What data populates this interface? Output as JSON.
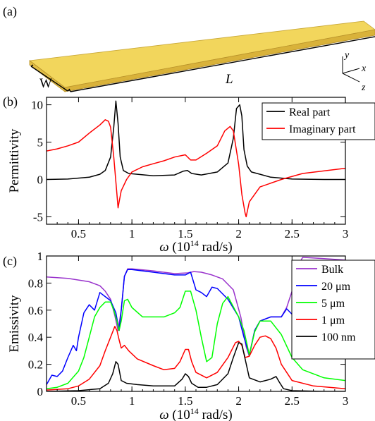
{
  "panel_a": {
    "label": "(a)",
    "width_label": "W",
    "length_label": "L",
    "axis_labels": {
      "y": "y",
      "x": "x",
      "z": "z"
    },
    "slab_color": "#f0d45a"
  },
  "chart_data": [
    {
      "type": "line",
      "panel": "(b)",
      "title": "",
      "xlabel": "ω (10",
      "xlabel_exp": "14",
      "xlabel_unit": " rad/s)",
      "ylabel": "Permittivity",
      "xlim": [
        0.2,
        3.0
      ],
      "ylim": [
        -6,
        11
      ],
      "xticks": [
        0.5,
        1,
        1.5,
        2,
        2.5,
        3
      ],
      "xtick_labels": [
        "0.5",
        "1",
        "1.5",
        "2",
        "2.5",
        "3"
      ],
      "yticks": [
        -5,
        0,
        5,
        10
      ],
      "ytick_labels": [
        "-5",
        "0",
        "5",
        "10"
      ],
      "grid": false,
      "legend_position": "top-right",
      "series": [
        {
          "name": "Real part",
          "color": "#000000",
          "x": [
            0.2,
            0.4,
            0.6,
            0.7,
            0.75,
            0.8,
            0.83,
            0.85,
            0.87,
            0.89,
            0.92,
            0.97,
            1.05,
            1.2,
            1.4,
            1.48,
            1.52,
            1.56,
            1.65,
            1.8,
            1.9,
            1.95,
            1.98,
            2.01,
            2.03,
            2.05,
            2.08,
            2.12,
            2.2,
            2.3,
            2.5,
            2.8,
            3.0
          ],
          "values": [
            0.0,
            0.05,
            0.3,
            0.7,
            1.2,
            3.0,
            7.0,
            10.5,
            7.5,
            3.0,
            1.2,
            0.8,
            0.7,
            0.5,
            0.6,
            1.1,
            1.2,
            0.8,
            0.6,
            1.0,
            2.2,
            5.5,
            9.5,
            10.0,
            8.5,
            4.0,
            1.8,
            1.0,
            0.7,
            0.3,
            0.05,
            0.0,
            0.0
          ]
        },
        {
          "name": "Imaginary part",
          "color": "#ff0000",
          "x": [
            0.2,
            0.3,
            0.4,
            0.5,
            0.6,
            0.7,
            0.75,
            0.78,
            0.8,
            0.83,
            0.86,
            0.87,
            0.88,
            0.9,
            0.95,
            1.0,
            1.1,
            1.2,
            1.3,
            1.4,
            1.5,
            1.55,
            1.6,
            1.7,
            1.8,
            1.87,
            1.92,
            1.95,
            2.0,
            2.03,
            2.06,
            2.07,
            2.1,
            2.2,
            2.4,
            2.6,
            3.0
          ],
          "values": [
            3.8,
            4.1,
            4.5,
            5.0,
            6.2,
            7.3,
            8.0,
            7.8,
            7.0,
            3.0,
            -2.0,
            -3.8,
            -3.0,
            -1.5,
            0.0,
            1.0,
            1.7,
            2.1,
            2.5,
            3.0,
            3.3,
            2.6,
            2.6,
            3.5,
            4.5,
            6.5,
            7.1,
            6.5,
            2.0,
            -2.0,
            -4.5,
            -5.0,
            -3.0,
            -1.0,
            0.0,
            0.8,
            1.5
          ]
        }
      ]
    },
    {
      "type": "line",
      "panel": "(c)",
      "title": "",
      "xlabel": "ω (10",
      "xlabel_exp": "14",
      "xlabel_unit": " rad/s)",
      "ylabel": "Emissivity",
      "xlim": [
        0.2,
        3.0
      ],
      "ylim": [
        0,
        1.0
      ],
      "xticks": [
        0.5,
        1,
        1.5,
        2,
        2.5,
        3
      ],
      "xtick_labels": [
        "0.5",
        "1",
        "1.5",
        "2",
        "2.5",
        "3"
      ],
      "yticks": [
        0,
        0.2,
        0.4,
        0.6,
        0.8,
        1
      ],
      "ytick_labels": [
        "0",
        "0.2",
        "0.4",
        "0.6",
        "0.8",
        "1"
      ],
      "grid": false,
      "legend_position": "right",
      "series": [
        {
          "name": "Bulk",
          "color": "#9933cc",
          "x": [
            0.2,
            0.4,
            0.6,
            0.7,
            0.75,
            0.8,
            0.84,
            0.87,
            0.9,
            0.93,
            0.96,
            1.0,
            1.2,
            1.4,
            1.52,
            1.58,
            1.65,
            1.75,
            1.85,
            1.95,
            2.02,
            2.07,
            2.1,
            2.15,
            2.2,
            2.3,
            2.4,
            2.45,
            2.5,
            2.55,
            2.6,
            2.8,
            3.0
          ],
          "values": [
            0.845,
            0.835,
            0.81,
            0.78,
            0.74,
            0.68,
            0.56,
            0.45,
            0.6,
            0.85,
            0.905,
            0.905,
            0.89,
            0.87,
            0.875,
            0.885,
            0.88,
            0.86,
            0.83,
            0.75,
            0.55,
            0.33,
            0.26,
            0.45,
            0.52,
            0.55,
            0.55,
            0.62,
            0.74,
            0.92,
            0.99,
            0.98,
            0.97
          ]
        },
        {
          "name": "20 μm",
          "color": "#0000ff",
          "x": [
            0.2,
            0.25,
            0.3,
            0.35,
            0.4,
            0.45,
            0.48,
            0.5,
            0.55,
            0.6,
            0.65,
            0.7,
            0.75,
            0.8,
            0.85,
            0.88,
            0.9,
            0.93,
            0.96,
            1.0,
            1.2,
            1.4,
            1.5,
            1.55,
            1.6,
            1.65,
            1.7,
            1.75,
            1.8,
            1.9,
            2.0,
            2.05,
            2.1,
            2.15,
            2.2,
            2.3,
            2.4,
            2.45,
            2.5,
            2.6,
            2.7,
            2.8,
            2.9,
            3.0
          ],
          "values": [
            0.05,
            0.12,
            0.11,
            0.15,
            0.25,
            0.34,
            0.3,
            0.4,
            0.58,
            0.64,
            0.6,
            0.73,
            0.7,
            0.67,
            0.58,
            0.45,
            0.6,
            0.85,
            0.9,
            0.9,
            0.88,
            0.86,
            0.86,
            0.88,
            0.75,
            0.73,
            0.7,
            0.77,
            0.76,
            0.68,
            0.55,
            0.4,
            0.27,
            0.45,
            0.52,
            0.55,
            0.55,
            0.61,
            0.57,
            0.5,
            0.42,
            0.38,
            0.32,
            0.27
          ]
        },
        {
          "name": "5 μm",
          "color": "#00ff00",
          "x": [
            0.2,
            0.3,
            0.4,
            0.5,
            0.55,
            0.6,
            0.65,
            0.7,
            0.75,
            0.8,
            0.83,
            0.86,
            0.88,
            0.9,
            0.93,
            0.96,
            1.0,
            1.1,
            1.2,
            1.3,
            1.4,
            1.45,
            1.5,
            1.55,
            1.6,
            1.65,
            1.7,
            1.75,
            1.8,
            1.85,
            1.9,
            2.0,
            2.05,
            2.1,
            2.15,
            2.2,
            2.3,
            2.4,
            2.5,
            2.6,
            2.8,
            3.0
          ],
          "values": [
            0.02,
            0.03,
            0.06,
            0.15,
            0.25,
            0.4,
            0.55,
            0.62,
            0.66,
            0.66,
            0.6,
            0.52,
            0.45,
            0.52,
            0.67,
            0.68,
            0.62,
            0.55,
            0.55,
            0.55,
            0.58,
            0.62,
            0.74,
            0.74,
            0.6,
            0.4,
            0.22,
            0.25,
            0.5,
            0.65,
            0.7,
            0.55,
            0.45,
            0.27,
            0.44,
            0.52,
            0.52,
            0.42,
            0.25,
            0.16,
            0.1,
            0.08
          ]
        },
        {
          "name": "1 μm",
          "color": "#ff0000",
          "x": [
            0.2,
            0.4,
            0.5,
            0.6,
            0.7,
            0.75,
            0.8,
            0.84,
            0.86,
            0.88,
            0.9,
            0.93,
            0.97,
            1.05,
            1.2,
            1.3,
            1.4,
            1.45,
            1.5,
            1.53,
            1.56,
            1.6,
            1.7,
            1.8,
            1.9,
            1.97,
            2.0,
            2.03,
            2.06,
            2.1,
            2.15,
            2.2,
            2.25,
            2.3,
            2.35,
            2.4,
            2.5,
            2.7,
            3.0
          ],
          "values": [
            0.01,
            0.02,
            0.04,
            0.09,
            0.19,
            0.3,
            0.4,
            0.48,
            0.45,
            0.38,
            0.32,
            0.34,
            0.3,
            0.24,
            0.19,
            0.16,
            0.17,
            0.22,
            0.31,
            0.31,
            0.22,
            0.14,
            0.1,
            0.14,
            0.25,
            0.36,
            0.37,
            0.34,
            0.25,
            0.26,
            0.34,
            0.4,
            0.41,
            0.39,
            0.32,
            0.2,
            0.08,
            0.04,
            0.02
          ]
        },
        {
          "name": "100 nm",
          "color": "#000000",
          "x": [
            0.2,
            0.5,
            0.7,
            0.78,
            0.82,
            0.85,
            0.87,
            0.9,
            0.95,
            1.05,
            1.2,
            1.4,
            1.47,
            1.5,
            1.53,
            1.56,
            1.62,
            1.7,
            1.8,
            1.9,
            1.95,
            2.0,
            2.03,
            2.06,
            2.1,
            2.2,
            2.3,
            2.35,
            2.38,
            2.42,
            2.5,
            2.8,
            3.0
          ],
          "values": [
            0.0,
            0.005,
            0.02,
            0.06,
            0.13,
            0.22,
            0.2,
            0.08,
            0.06,
            0.05,
            0.04,
            0.04,
            0.09,
            0.13,
            0.11,
            0.06,
            0.03,
            0.03,
            0.05,
            0.13,
            0.25,
            0.36,
            0.35,
            0.24,
            0.1,
            0.07,
            0.09,
            0.11,
            0.07,
            0.02,
            0.005,
            0.0,
            0.0
          ]
        }
      ]
    }
  ]
}
